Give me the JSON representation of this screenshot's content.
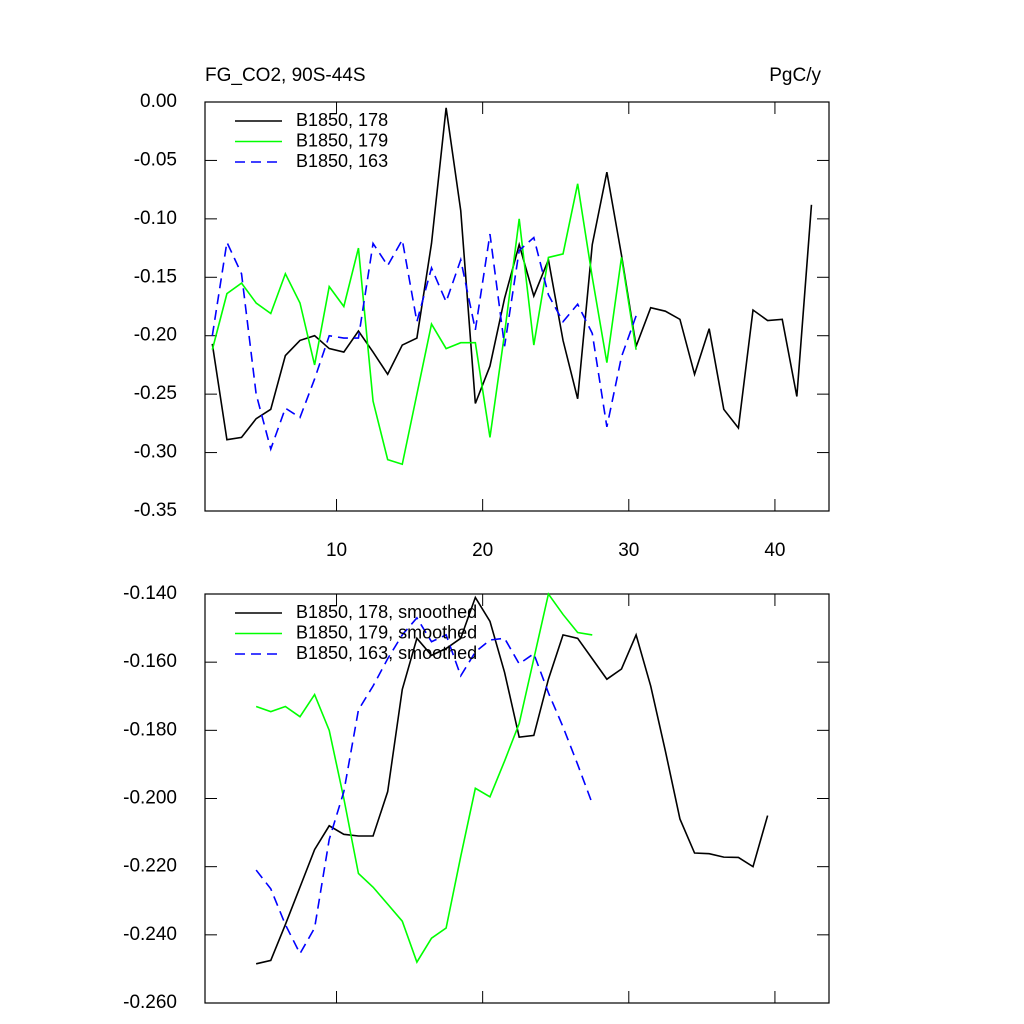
{
  "chart_data": [
    {
      "type": "line",
      "title": "FG_CO2, 90S-44S",
      "units": "PgC/y",
      "x": [
        1.5,
        2.5,
        3.5,
        4.5,
        5.5,
        6.5,
        7.5,
        8.5,
        9.5,
        10.5,
        11.5,
        12.5,
        13.5,
        14.5,
        15.5,
        16.5,
        17.5,
        18.5,
        19.5,
        20.5,
        21.5,
        22.5,
        23.5,
        24.5,
        25.5,
        26.5,
        27.5,
        28.5,
        29.5,
        30.5,
        31.5,
        32.5,
        33.5,
        34.5,
        35.5,
        36.5,
        37.5,
        38.5,
        39.5,
        40.5,
        41.5,
        42.5
      ],
      "series": [
        {
          "name": "B1850, 178",
          "color": "#000000",
          "dashed": false,
          "values": [
            -0.207,
            -0.289,
            -0.287,
            -0.271,
            -0.263,
            -0.217,
            -0.204,
            -0.2,
            -0.211,
            -0.214,
            -0.196,
            -0.214,
            -0.233,
            -0.208,
            -0.202,
            -0.121,
            -0.005,
            -0.093,
            -0.258,
            -0.226,
            -0.168,
            -0.122,
            -0.166,
            -0.135,
            -0.204,
            -0.254,
            -0.122,
            -0.06,
            -0.131,
            -0.209,
            -0.176,
            -0.179,
            -0.186,
            -0.233,
            -0.194,
            -0.263,
            -0.279,
            -0.178,
            -0.187,
            -0.186,
            -0.252,
            -0.088
          ]
        },
        {
          "name": "B1850, 179",
          "color": "#00ff00",
          "dashed": false,
          "values": [
            -0.212,
            -0.164,
            -0.155,
            -0.172,
            -0.181,
            -0.147,
            -0.172,
            -0.225,
            -0.158,
            -0.175,
            -0.125,
            -0.256,
            -0.306,
            -0.31,
            -0.25,
            -0.19,
            -0.211,
            -0.206,
            -0.206,
            -0.287,
            -0.198,
            -0.1,
            -0.208,
            -0.133,
            -0.13,
            -0.07,
            -0.15,
            -0.223,
            -0.133,
            -0.212,
            null,
            null,
            null,
            null,
            null,
            null,
            null,
            null,
            null,
            null,
            null,
            null
          ]
        },
        {
          "name": "B1850, 163",
          "color": "#0000ff",
          "dashed": true,
          "values": [
            -0.2,
            -0.12,
            -0.147,
            -0.25,
            -0.297,
            -0.262,
            -0.27,
            -0.237,
            -0.2,
            -0.202,
            -0.202,
            -0.121,
            -0.14,
            -0.118,
            -0.188,
            -0.142,
            -0.171,
            -0.135,
            -0.195,
            -0.113,
            -0.209,
            -0.127,
            -0.116,
            -0.165,
            -0.188,
            -0.173,
            -0.198,
            -0.278,
            -0.218,
            -0.183,
            null,
            null,
            null,
            null,
            null,
            null,
            null,
            null,
            null,
            null,
            null,
            null
          ]
        }
      ],
      "xlim": [
        1,
        43.7
      ],
      "xticks": [
        10,
        20,
        30,
        40
      ],
      "xticklabels": true,
      "ylim": [
        -0.35,
        0
      ],
      "yticks": [
        {
          "value": -0.35,
          "label": "-0.35"
        },
        {
          "value": -0.3,
          "label": "-0.30"
        },
        {
          "value": -0.25,
          "label": "-0.25"
        },
        {
          "value": -0.2,
          "label": "-0.20"
        },
        {
          "value": -0.15,
          "label": "-0.15"
        },
        {
          "value": -0.1,
          "label": "-0.10"
        },
        {
          "value": -0.05,
          "label": "-0.05"
        },
        {
          "value": 0,
          "label": "0.00"
        }
      ],
      "legend": "top-left"
    },
    {
      "type": "line",
      "x": [
        4.5,
        5.5,
        6.5,
        7.5,
        8.5,
        9.5,
        10.5,
        11.5,
        12.5,
        13.5,
        14.5,
        15.5,
        16.5,
        17.5,
        18.5,
        19.5,
        20.5,
        21.5,
        22.5,
        23.5,
        24.5,
        25.5,
        26.5,
        27.5,
        28.5,
        29.5,
        30.5,
        31.5,
        32.5,
        33.5,
        34.5,
        35.5,
        36.5,
        37.5,
        38.5,
        39.5
      ],
      "series": [
        {
          "name": "B1850, 178, smoothed",
          "color": "#000000",
          "dashed": false,
          "values": [
            -0.2485,
            -0.2475,
            -0.237,
            -0.226,
            -0.215,
            -0.208,
            -0.2105,
            -0.211,
            -0.211,
            -0.198,
            -0.168,
            -0.153,
            -0.158,
            -0.156,
            -0.153,
            -0.141,
            -0.148,
            -0.163,
            -0.182,
            -0.1815,
            -0.165,
            -0.152,
            -0.153,
            -0.159,
            -0.165,
            -0.162,
            -0.152,
            -0.167,
            -0.186,
            -0.206,
            -0.216,
            -0.2162,
            -0.2172,
            -0.2173,
            -0.22,
            -0.205
          ]
        },
        {
          "name": "B1850, 179, smoothed",
          "color": "#00ff00",
          "dashed": false,
          "values": [
            -0.173,
            -0.1745,
            -0.173,
            -0.176,
            -0.1695,
            -0.18,
            -0.2,
            -0.222,
            -0.226,
            -0.231,
            -0.236,
            -0.248,
            -0.241,
            -0.238,
            -0.217,
            -0.197,
            -0.1995,
            -0.189,
            -0.178,
            -0.159,
            -0.14,
            -0.146,
            -0.1513,
            -0.152,
            null,
            null,
            null,
            null,
            null,
            null,
            null,
            null,
            null,
            null,
            null,
            null
          ]
        },
        {
          "name": "B1850, 163, smoothed",
          "color": "#0000ff",
          "dashed": true,
          "values": [
            -0.221,
            -0.2265,
            -0.237,
            -0.2455,
            -0.238,
            -0.212,
            -0.198,
            -0.174,
            -0.167,
            -0.159,
            -0.152,
            -0.147,
            -0.154,
            -0.152,
            -0.164,
            -0.157,
            -0.1535,
            -0.153,
            -0.1605,
            -0.1575,
            -0.169,
            -0.179,
            -0.19,
            -0.2015,
            null,
            null,
            null,
            null,
            null,
            null,
            null,
            null,
            null,
            null,
            null,
            null
          ]
        }
      ],
      "xlim": [
        1,
        43.7
      ],
      "xticks": [
        10,
        20,
        30,
        40
      ],
      "xticklabels": false,
      "ylim": [
        -0.26,
        -0.14
      ],
      "yticks": [
        {
          "value": -0.26,
          "label": "-0.260"
        },
        {
          "value": -0.24,
          "label": "-0.240"
        },
        {
          "value": -0.22,
          "label": "-0.220"
        },
        {
          "value": -0.2,
          "label": "-0.200"
        },
        {
          "value": -0.18,
          "label": "-0.180"
        },
        {
          "value": -0.16,
          "label": "-0.160"
        },
        {
          "value": -0.14,
          "label": "-0.140"
        }
      ],
      "legend": "top-left"
    }
  ]
}
